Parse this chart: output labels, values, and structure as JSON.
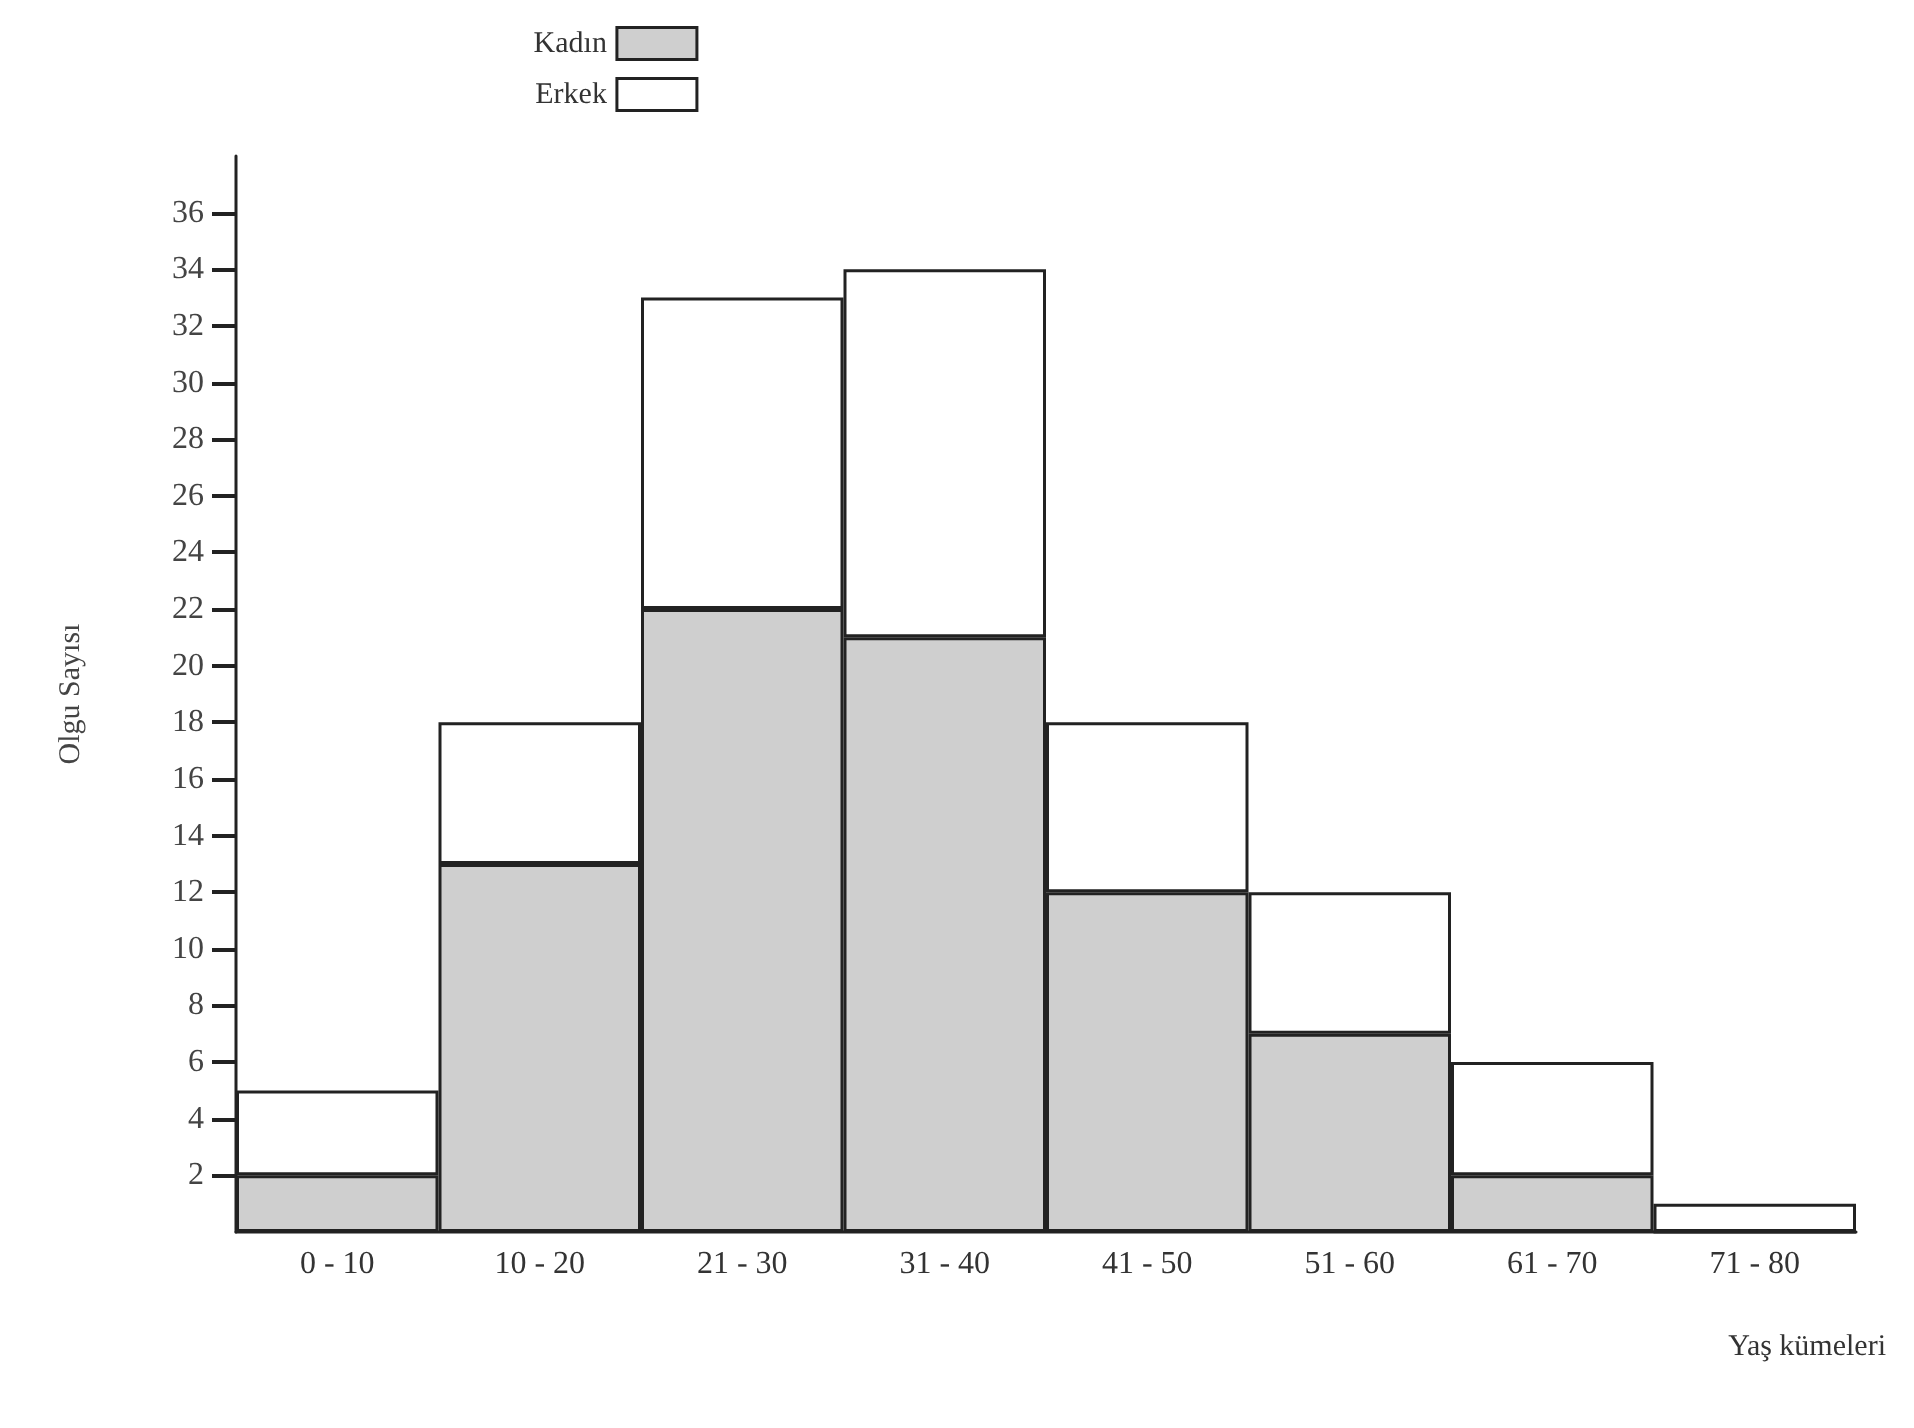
{
  "chart_data": {
    "type": "bar",
    "stacked": true,
    "xlabel": "Yaş kümeleri",
    "ylabel": "Olgu Sayısı",
    "categories": [
      "0 - 10",
      "10 - 20",
      "21 - 30",
      "31 - 40",
      "41 - 50",
      "51 - 60",
      "61 - 70",
      "71 - 80"
    ],
    "series": [
      {
        "name": "Kadın",
        "color": "#cfcfcf",
        "values": [
          2,
          13,
          22,
          21,
          12,
          7,
          2,
          0
        ]
      },
      {
        "name": "Erkek",
        "color": "#ffffff",
        "values": [
          3,
          5,
          11,
          13,
          6,
          5,
          4,
          1
        ]
      }
    ],
    "ylim": [
      0,
      38
    ],
    "yticks": [
      2,
      4,
      6,
      8,
      10,
      12,
      14,
      16,
      18,
      20,
      22,
      24,
      26,
      28,
      30,
      32,
      34,
      36
    ],
    "grid": false,
    "legend": "top"
  }
}
